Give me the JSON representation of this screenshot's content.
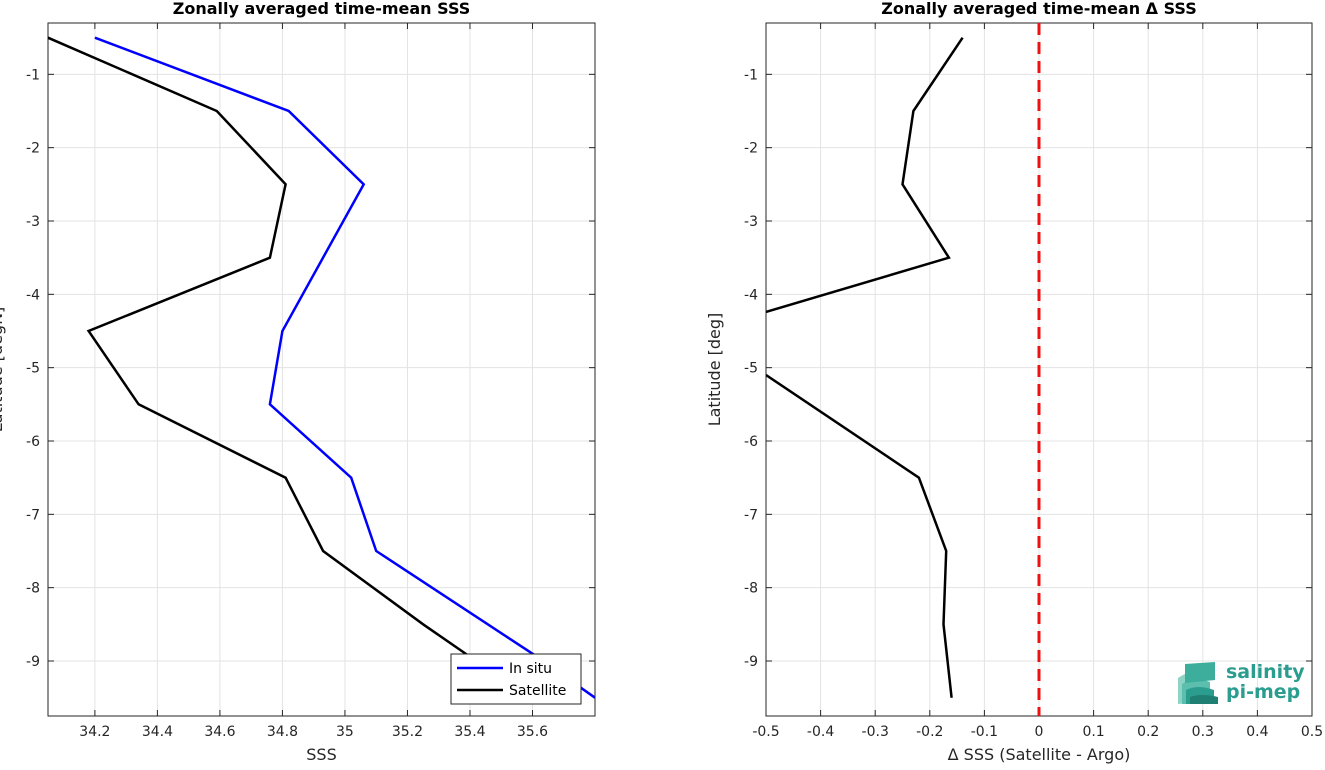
{
  "chart_data": [
    {
      "type": "line",
      "title": "Zonally averaged time-mean SSS",
      "xlabel": "SSS",
      "ylabel": "Latitude [degN]",
      "xlim": [
        34.05,
        35.8
      ],
      "ylim": [
        -9.75,
        -0.3
      ],
      "xticks": [
        34.2,
        34.4,
        34.6,
        34.8,
        35,
        35.2,
        35.4,
        35.6
      ],
      "xtick_labels": [
        "34.2",
        "34.4",
        "34.6",
        "34.8",
        "35",
        "35.2",
        "35.4",
        "35.6"
      ],
      "yticks": [
        -1,
        -2,
        -3,
        -4,
        -5,
        -6,
        -7,
        -8,
        -9
      ],
      "ytick_labels": [
        "-1",
        "-2",
        "-3",
        "-4",
        "-5",
        "-6",
        "-7",
        "-8",
        "-9"
      ],
      "grid": true,
      "legend_position": "bottom-right",
      "series": [
        {
          "name": "In situ",
          "color": "#0000ff",
          "x": [
            34.2,
            34.82,
            35.06,
            34.8,
            34.76,
            35.02,
            35.1,
            35.6,
            35.8
          ],
          "y": [
            -0.5,
            -1.5,
            -2.5,
            -4.5,
            -5.5,
            -6.5,
            -7.5,
            -8.9,
            -9.5
          ]
        },
        {
          "name": "Satellite",
          "color": "#000000",
          "x": [
            34.05,
            34.59,
            34.81,
            34.76,
            34.18,
            34.34,
            34.81,
            34.93,
            35.25,
            35.42
          ],
          "y": [
            -0.5,
            -1.5,
            -2.5,
            -3.5,
            -4.5,
            -5.5,
            -6.5,
            -7.5,
            -8.5,
            -9.0
          ]
        }
      ]
    },
    {
      "type": "line",
      "title": "Zonally averaged time-mean Δ SSS",
      "xlabel": "Δ SSS (Satellite - Argo)",
      "ylabel": "Latitude [deg]",
      "xlim": [
        -0.5,
        0.5
      ],
      "ylim": [
        -9.75,
        -0.3
      ],
      "xticks": [
        -0.5,
        -0.4,
        -0.3,
        -0.2,
        -0.1,
        0,
        0.1,
        0.2,
        0.3,
        0.4,
        0.5
      ],
      "xtick_labels": [
        "-0.5",
        "-0.4",
        "-0.3",
        "-0.2",
        "-0.1",
        "0",
        "0.1",
        "0.2",
        "0.3",
        "0.4",
        "0.5"
      ],
      "yticks": [
        -1,
        -2,
        -3,
        -4,
        -5,
        -6,
        -7,
        -8,
        -9
      ],
      "ytick_labels": [
        "-1",
        "-2",
        "-3",
        "-4",
        "-5",
        "-6",
        "-7",
        "-8",
        "-9"
      ],
      "grid": true,
      "reference_line": {
        "x": 0,
        "color": "#ee1111",
        "style": "dashed"
      },
      "series": [
        {
          "color": "#000000",
          "x": [
            -0.14,
            -0.23,
            -0.25,
            -0.165,
            -0.5
          ],
          "y": [
            -0.5,
            -1.5,
            -2.5,
            -3.5,
            -4.24
          ]
        },
        {
          "color": "#000000",
          "x": [
            -0.5,
            -0.22,
            -0.17,
            -0.175,
            -0.16
          ],
          "y": [
            -5.1,
            -6.5,
            -7.5,
            -8.5,
            -9.5
          ]
        }
      ]
    }
  ],
  "logo": {
    "line1": "salinity",
    "line2": "pi-mep"
  }
}
